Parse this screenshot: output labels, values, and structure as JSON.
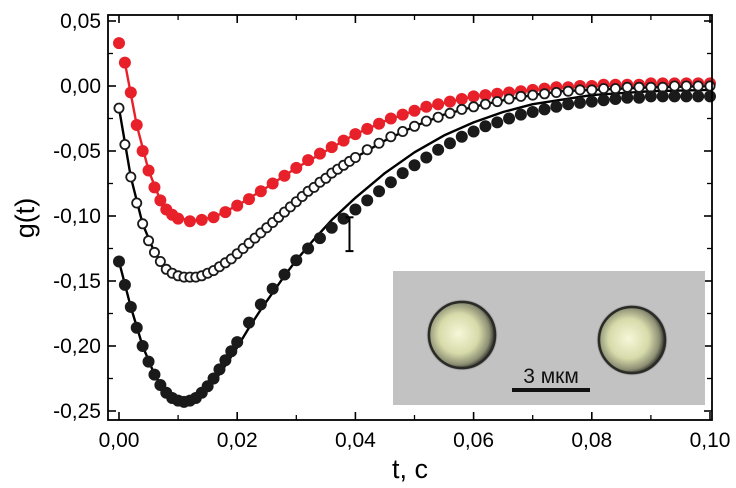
{
  "chart_data": {
    "type": "scatter",
    "title": "",
    "xlabel": "t, c",
    "ylabel": "g(t)",
    "xlim": [
      -0.002,
      0.1
    ],
    "ylim": [
      -0.255,
      0.05
    ],
    "x_ticks": [
      0.0,
      0.02,
      0.04,
      0.06,
      0.08,
      0.1
    ],
    "x_tick_labels": [
      "0,00",
      "0,02",
      "0,04",
      "0,06",
      "0,08",
      "0,10"
    ],
    "y_ticks": [
      0.05,
      0.0,
      -0.05,
      -0.1,
      -0.15,
      -0.2,
      -0.25
    ],
    "y_tick_labels": [
      "0,05",
      "0,00",
      "-0,05",
      "-0,10",
      "-0,15",
      "-0,20",
      "-0,25"
    ],
    "grid": false,
    "colors": {
      "red": "#e8202a",
      "black": "#1a1a1a",
      "fit": "#000000"
    },
    "series": [
      {
        "marker": "filled-circle",
        "color": "#e8202a",
        "points": [
          [
            0.0,
            0.033
          ],
          [
            0.001,
            0.018
          ],
          [
            0.002,
            -0.005
          ],
          [
            0.003,
            -0.03
          ],
          [
            0.004,
            -0.05
          ],
          [
            0.005,
            -0.065
          ],
          [
            0.006,
            -0.078
          ],
          [
            0.007,
            -0.088
          ],
          [
            0.008,
            -0.095
          ],
          [
            0.009,
            -0.099
          ],
          [
            0.01,
            -0.102
          ],
          [
            0.012,
            -0.104
          ],
          [
            0.014,
            -0.103
          ],
          [
            0.016,
            -0.101
          ],
          [
            0.018,
            -0.097
          ],
          [
            0.02,
            -0.092
          ],
          [
            0.022,
            -0.087
          ],
          [
            0.024,
            -0.081
          ],
          [
            0.026,
            -0.075
          ],
          [
            0.028,
            -0.069
          ],
          [
            0.03,
            -0.063
          ],
          [
            0.032,
            -0.057
          ],
          [
            0.034,
            -0.052
          ],
          [
            0.036,
            -0.047
          ],
          [
            0.038,
            -0.042
          ],
          [
            0.04,
            -0.037
          ],
          [
            0.042,
            -0.033
          ],
          [
            0.044,
            -0.029
          ],
          [
            0.046,
            -0.025
          ],
          [
            0.048,
            -0.022
          ],
          [
            0.05,
            -0.019
          ],
          [
            0.052,
            -0.016
          ],
          [
            0.054,
            -0.014
          ],
          [
            0.056,
            -0.012
          ],
          [
            0.058,
            -0.01
          ],
          [
            0.06,
            -0.008
          ],
          [
            0.062,
            -0.007
          ],
          [
            0.064,
            -0.006
          ],
          [
            0.066,
            -0.005
          ],
          [
            0.068,
            -0.004
          ],
          [
            0.07,
            -0.003
          ],
          [
            0.072,
            -0.002
          ],
          [
            0.074,
            -0.001
          ],
          [
            0.076,
            -0.001
          ],
          [
            0.078,
            0.0
          ],
          [
            0.08,
            0.0
          ],
          [
            0.082,
            0.001
          ],
          [
            0.084,
            0.001
          ],
          [
            0.086,
            0.001
          ],
          [
            0.088,
            0.001
          ],
          [
            0.09,
            0.002
          ],
          [
            0.092,
            0.002
          ],
          [
            0.094,
            0.002
          ],
          [
            0.096,
            0.002
          ],
          [
            0.098,
            0.002
          ],
          [
            0.1,
            0.002
          ]
        ]
      },
      {
        "marker": "open-circle",
        "color": "#1a1a1a",
        "points": [
          [
            0.0,
            -0.017
          ],
          [
            0.001,
            -0.045
          ],
          [
            0.002,
            -0.07
          ],
          [
            0.003,
            -0.09
          ],
          [
            0.004,
            -0.106
          ],
          [
            0.005,
            -0.119
          ],
          [
            0.006,
            -0.128
          ],
          [
            0.007,
            -0.135
          ],
          [
            0.008,
            -0.141
          ],
          [
            0.009,
            -0.144
          ],
          [
            0.01,
            -0.146
          ],
          [
            0.011,
            -0.147
          ],
          [
            0.012,
            -0.147
          ],
          [
            0.013,
            -0.147
          ],
          [
            0.014,
            -0.146
          ],
          [
            0.015,
            -0.144
          ],
          [
            0.016,
            -0.142
          ],
          [
            0.017,
            -0.139
          ],
          [
            0.018,
            -0.136
          ],
          [
            0.019,
            -0.133
          ],
          [
            0.02,
            -0.129
          ],
          [
            0.021,
            -0.125
          ],
          [
            0.022,
            -0.121
          ],
          [
            0.023,
            -0.117
          ],
          [
            0.024,
            -0.113
          ],
          [
            0.025,
            -0.109
          ],
          [
            0.026,
            -0.105
          ],
          [
            0.027,
            -0.101
          ],
          [
            0.028,
            -0.097
          ],
          [
            0.029,
            -0.093
          ],
          [
            0.03,
            -0.089
          ],
          [
            0.031,
            -0.085
          ],
          [
            0.032,
            -0.081
          ],
          [
            0.033,
            -0.078
          ],
          [
            0.034,
            -0.074
          ],
          [
            0.035,
            -0.071
          ],
          [
            0.036,
            -0.067
          ],
          [
            0.037,
            -0.064
          ],
          [
            0.038,
            -0.061
          ],
          [
            0.039,
            -0.058
          ],
          [
            0.04,
            -0.055
          ],
          [
            0.042,
            -0.049
          ],
          [
            0.044,
            -0.044
          ],
          [
            0.046,
            -0.039
          ],
          [
            0.048,
            -0.035
          ],
          [
            0.05,
            -0.031
          ],
          [
            0.052,
            -0.027
          ],
          [
            0.054,
            -0.024
          ],
          [
            0.056,
            -0.021
          ],
          [
            0.058,
            -0.018
          ],
          [
            0.06,
            -0.016
          ],
          [
            0.062,
            -0.014
          ],
          [
            0.064,
            -0.012
          ],
          [
            0.066,
            -0.01
          ],
          [
            0.068,
            -0.008
          ],
          [
            0.07,
            -0.007
          ],
          [
            0.072,
            -0.006
          ],
          [
            0.074,
            -0.005
          ],
          [
            0.076,
            -0.004
          ],
          [
            0.078,
            -0.003
          ],
          [
            0.08,
            -0.003
          ],
          [
            0.082,
            -0.002
          ],
          [
            0.084,
            -0.002
          ],
          [
            0.086,
            -0.001
          ],
          [
            0.088,
            -0.001
          ],
          [
            0.09,
            -0.001
          ],
          [
            0.092,
            -0.001
          ],
          [
            0.094,
            0.0
          ],
          [
            0.096,
            0.0
          ],
          [
            0.098,
            0.0
          ],
          [
            0.1,
            0.0
          ]
        ]
      },
      {
        "marker": "filled-circle",
        "color": "#1a1a1a",
        "points": [
          [
            0.0,
            -0.135
          ],
          [
            0.001,
            -0.153
          ],
          [
            0.002,
            -0.17
          ],
          [
            0.003,
            -0.186
          ],
          [
            0.004,
            -0.2
          ],
          [
            0.005,
            -0.212
          ],
          [
            0.006,
            -0.222
          ],
          [
            0.007,
            -0.23
          ],
          [
            0.008,
            -0.236
          ],
          [
            0.009,
            -0.24
          ],
          [
            0.01,
            -0.242
          ],
          [
            0.011,
            -0.243
          ],
          [
            0.012,
            -0.242
          ],
          [
            0.013,
            -0.24
          ],
          [
            0.014,
            -0.236
          ],
          [
            0.015,
            -0.231
          ],
          [
            0.016,
            -0.225
          ],
          [
            0.017,
            -0.218
          ],
          [
            0.018,
            -0.211
          ],
          [
            0.019,
            -0.204
          ],
          [
            0.02,
            -0.197
          ],
          [
            0.022,
            -0.182
          ],
          [
            0.024,
            -0.168
          ],
          [
            0.026,
            -0.156
          ],
          [
            0.028,
            -0.145
          ],
          [
            0.03,
            -0.134
          ],
          [
            0.032,
            -0.125
          ],
          [
            0.034,
            -0.117
          ],
          [
            0.036,
            -0.109
          ],
          [
            0.038,
            -0.102
          ],
          [
            0.04,
            -0.095
          ],
          [
            0.042,
            -0.088
          ],
          [
            0.044,
            -0.081
          ],
          [
            0.046,
            -0.074
          ],
          [
            0.048,
            -0.067
          ],
          [
            0.05,
            -0.061
          ],
          [
            0.052,
            -0.055
          ],
          [
            0.054,
            -0.049
          ],
          [
            0.056,
            -0.044
          ],
          [
            0.058,
            -0.039
          ],
          [
            0.06,
            -0.035
          ],
          [
            0.062,
            -0.031
          ],
          [
            0.064,
            -0.028
          ],
          [
            0.066,
            -0.025
          ],
          [
            0.068,
            -0.022
          ],
          [
            0.07,
            -0.02
          ],
          [
            0.072,
            -0.018
          ],
          [
            0.074,
            -0.016
          ],
          [
            0.076,
            -0.014
          ],
          [
            0.078,
            -0.013
          ],
          [
            0.08,
            -0.012
          ],
          [
            0.082,
            -0.011
          ],
          [
            0.084,
            -0.01
          ],
          [
            0.086,
            -0.009
          ],
          [
            0.088,
            -0.009
          ],
          [
            0.09,
            -0.008
          ],
          [
            0.092,
            -0.008
          ],
          [
            0.094,
            -0.008
          ],
          [
            0.096,
            -0.008
          ],
          [
            0.098,
            -0.008
          ],
          [
            0.1,
            -0.008
          ]
        ]
      }
    ],
    "fit_curves": [
      {
        "color": "#e8202a",
        "points": [
          [
            0.001,
            0.018
          ],
          [
            0.003,
            -0.03
          ],
          [
            0.005,
            -0.065
          ],
          [
            0.007,
            -0.088
          ],
          [
            0.009,
            -0.099
          ],
          [
            0.012,
            -0.104
          ],
          [
            0.016,
            -0.101
          ],
          [
            0.02,
            -0.092
          ],
          [
            0.025,
            -0.078
          ],
          [
            0.03,
            -0.063
          ],
          [
            0.035,
            -0.05
          ],
          [
            0.04,
            -0.037
          ],
          [
            0.045,
            -0.027
          ],
          [
            0.05,
            -0.019
          ],
          [
            0.055,
            -0.013
          ],
          [
            0.06,
            -0.008
          ],
          [
            0.065,
            -0.005
          ],
          [
            0.07,
            -0.003
          ],
          [
            0.075,
            -0.001
          ],
          [
            0.08,
            0.0
          ],
          [
            0.09,
            0.0
          ],
          [
            0.1,
            0.0
          ]
        ]
      },
      {
        "color": "#000000",
        "points": [
          [
            0.0,
            -0.017
          ],
          [
            0.002,
            -0.07
          ],
          [
            0.004,
            -0.106
          ],
          [
            0.006,
            -0.128
          ],
          [
            0.008,
            -0.141
          ],
          [
            0.01,
            -0.146
          ],
          [
            0.012,
            -0.147
          ],
          [
            0.014,
            -0.146
          ],
          [
            0.016,
            -0.142
          ],
          [
            0.018,
            -0.136
          ],
          [
            0.02,
            -0.129
          ],
          [
            0.025,
            -0.109
          ],
          [
            0.03,
            -0.089
          ],
          [
            0.035,
            -0.071
          ],
          [
            0.04,
            -0.055
          ],
          [
            0.045,
            -0.042
          ],
          [
            0.05,
            -0.031
          ],
          [
            0.055,
            -0.022
          ],
          [
            0.06,
            -0.016
          ],
          [
            0.065,
            -0.011
          ],
          [
            0.07,
            -0.007
          ],
          [
            0.075,
            -0.004
          ],
          [
            0.08,
            -0.003
          ],
          [
            0.09,
            -0.001
          ],
          [
            0.1,
            0.0
          ]
        ]
      },
      {
        "color": "#000000",
        "points": [
          [
            0.0,
            -0.135
          ],
          [
            0.002,
            -0.17
          ],
          [
            0.004,
            -0.2
          ],
          [
            0.006,
            -0.222
          ],
          [
            0.008,
            -0.236
          ],
          [
            0.01,
            -0.242
          ],
          [
            0.012,
            -0.243
          ],
          [
            0.014,
            -0.238
          ],
          [
            0.016,
            -0.228
          ],
          [
            0.018,
            -0.215
          ],
          [
            0.02,
            -0.201
          ],
          [
            0.022,
            -0.186
          ],
          [
            0.024,
            -0.172
          ],
          [
            0.026,
            -0.159
          ],
          [
            0.028,
            -0.146
          ],
          [
            0.03,
            -0.134
          ],
          [
            0.033,
            -0.118
          ],
          [
            0.036,
            -0.103
          ],
          [
            0.04,
            -0.086
          ],
          [
            0.045,
            -0.067
          ],
          [
            0.05,
            -0.051
          ],
          [
            0.055,
            -0.038
          ],
          [
            0.06,
            -0.028
          ],
          [
            0.065,
            -0.02
          ],
          [
            0.07,
            -0.014
          ],
          [
            0.08,
            -0.007
          ],
          [
            0.09,
            -0.004
          ],
          [
            0.1,
            -0.003
          ]
        ]
      }
    ],
    "error_bar": {
      "x": 0.039,
      "y": -0.114,
      "yerr": 0.013
    },
    "inset": {
      "scale_label": "3 мкм",
      "image_description": "micrograph of two spherical particles on grey background"
    }
  }
}
